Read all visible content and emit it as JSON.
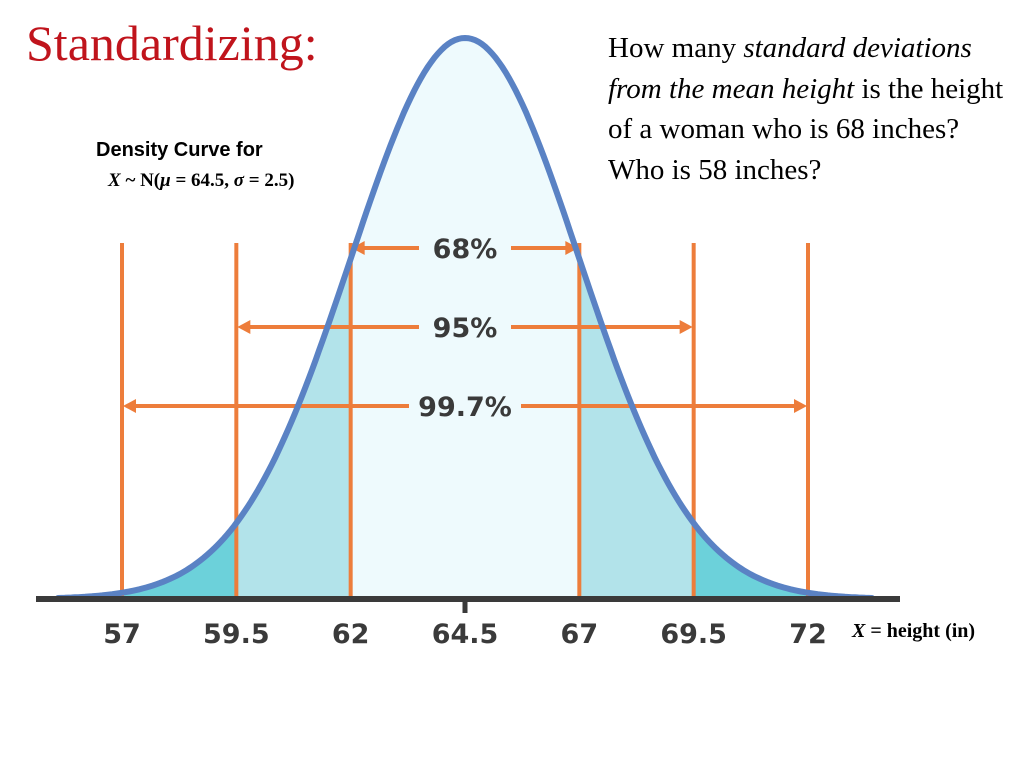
{
  "slide": {
    "title": "Standardizing:",
    "question_parts": [
      {
        "text": "How many ",
        "italic": false
      },
      {
        "text": "standard deviations from the mean height",
        "italic": true
      },
      {
        "text": " is the height of a woman who is 68 inches? Who is 58 inches?",
        "italic": false
      }
    ],
    "curve_label": "Density Curve for",
    "distribution": {
      "var": "X",
      "tilde_n": " ~ N(",
      "mu": "μ",
      "mu_value": " = 64.5, ",
      "sigma": "σ",
      "sigma_value": " = 2.5)"
    },
    "x_axis_label": {
      "var": "X",
      "rest": " = height (in)"
    }
  },
  "chart_data": {
    "type": "area",
    "distribution": "normal",
    "mean": 64.5,
    "sd": 2.5,
    "x_ticks": [
      57,
      59.5,
      62,
      64.5,
      67,
      69.5,
      72
    ],
    "x_tick_labels": [
      "57",
      "59.5",
      "62",
      "64.5",
      "67",
      "69.5",
      "72"
    ],
    "xlim": [
      55.6,
      73.4
    ],
    "bands": [
      {
        "label": "68%",
        "from": 62,
        "to": 67
      },
      {
        "label": "95%",
        "from": 59.5,
        "to": 69.5
      },
      {
        "label": "99.7%",
        "from": 57,
        "to": 72
      }
    ],
    "colors": {
      "curve": "#5a82c4",
      "center_fill": "#eefafd",
      "mid_fill": "#b2e3ea",
      "tail_fill": "#6cd1da",
      "marker": "#ed7d3b",
      "axis": "#3a3a3a"
    }
  }
}
